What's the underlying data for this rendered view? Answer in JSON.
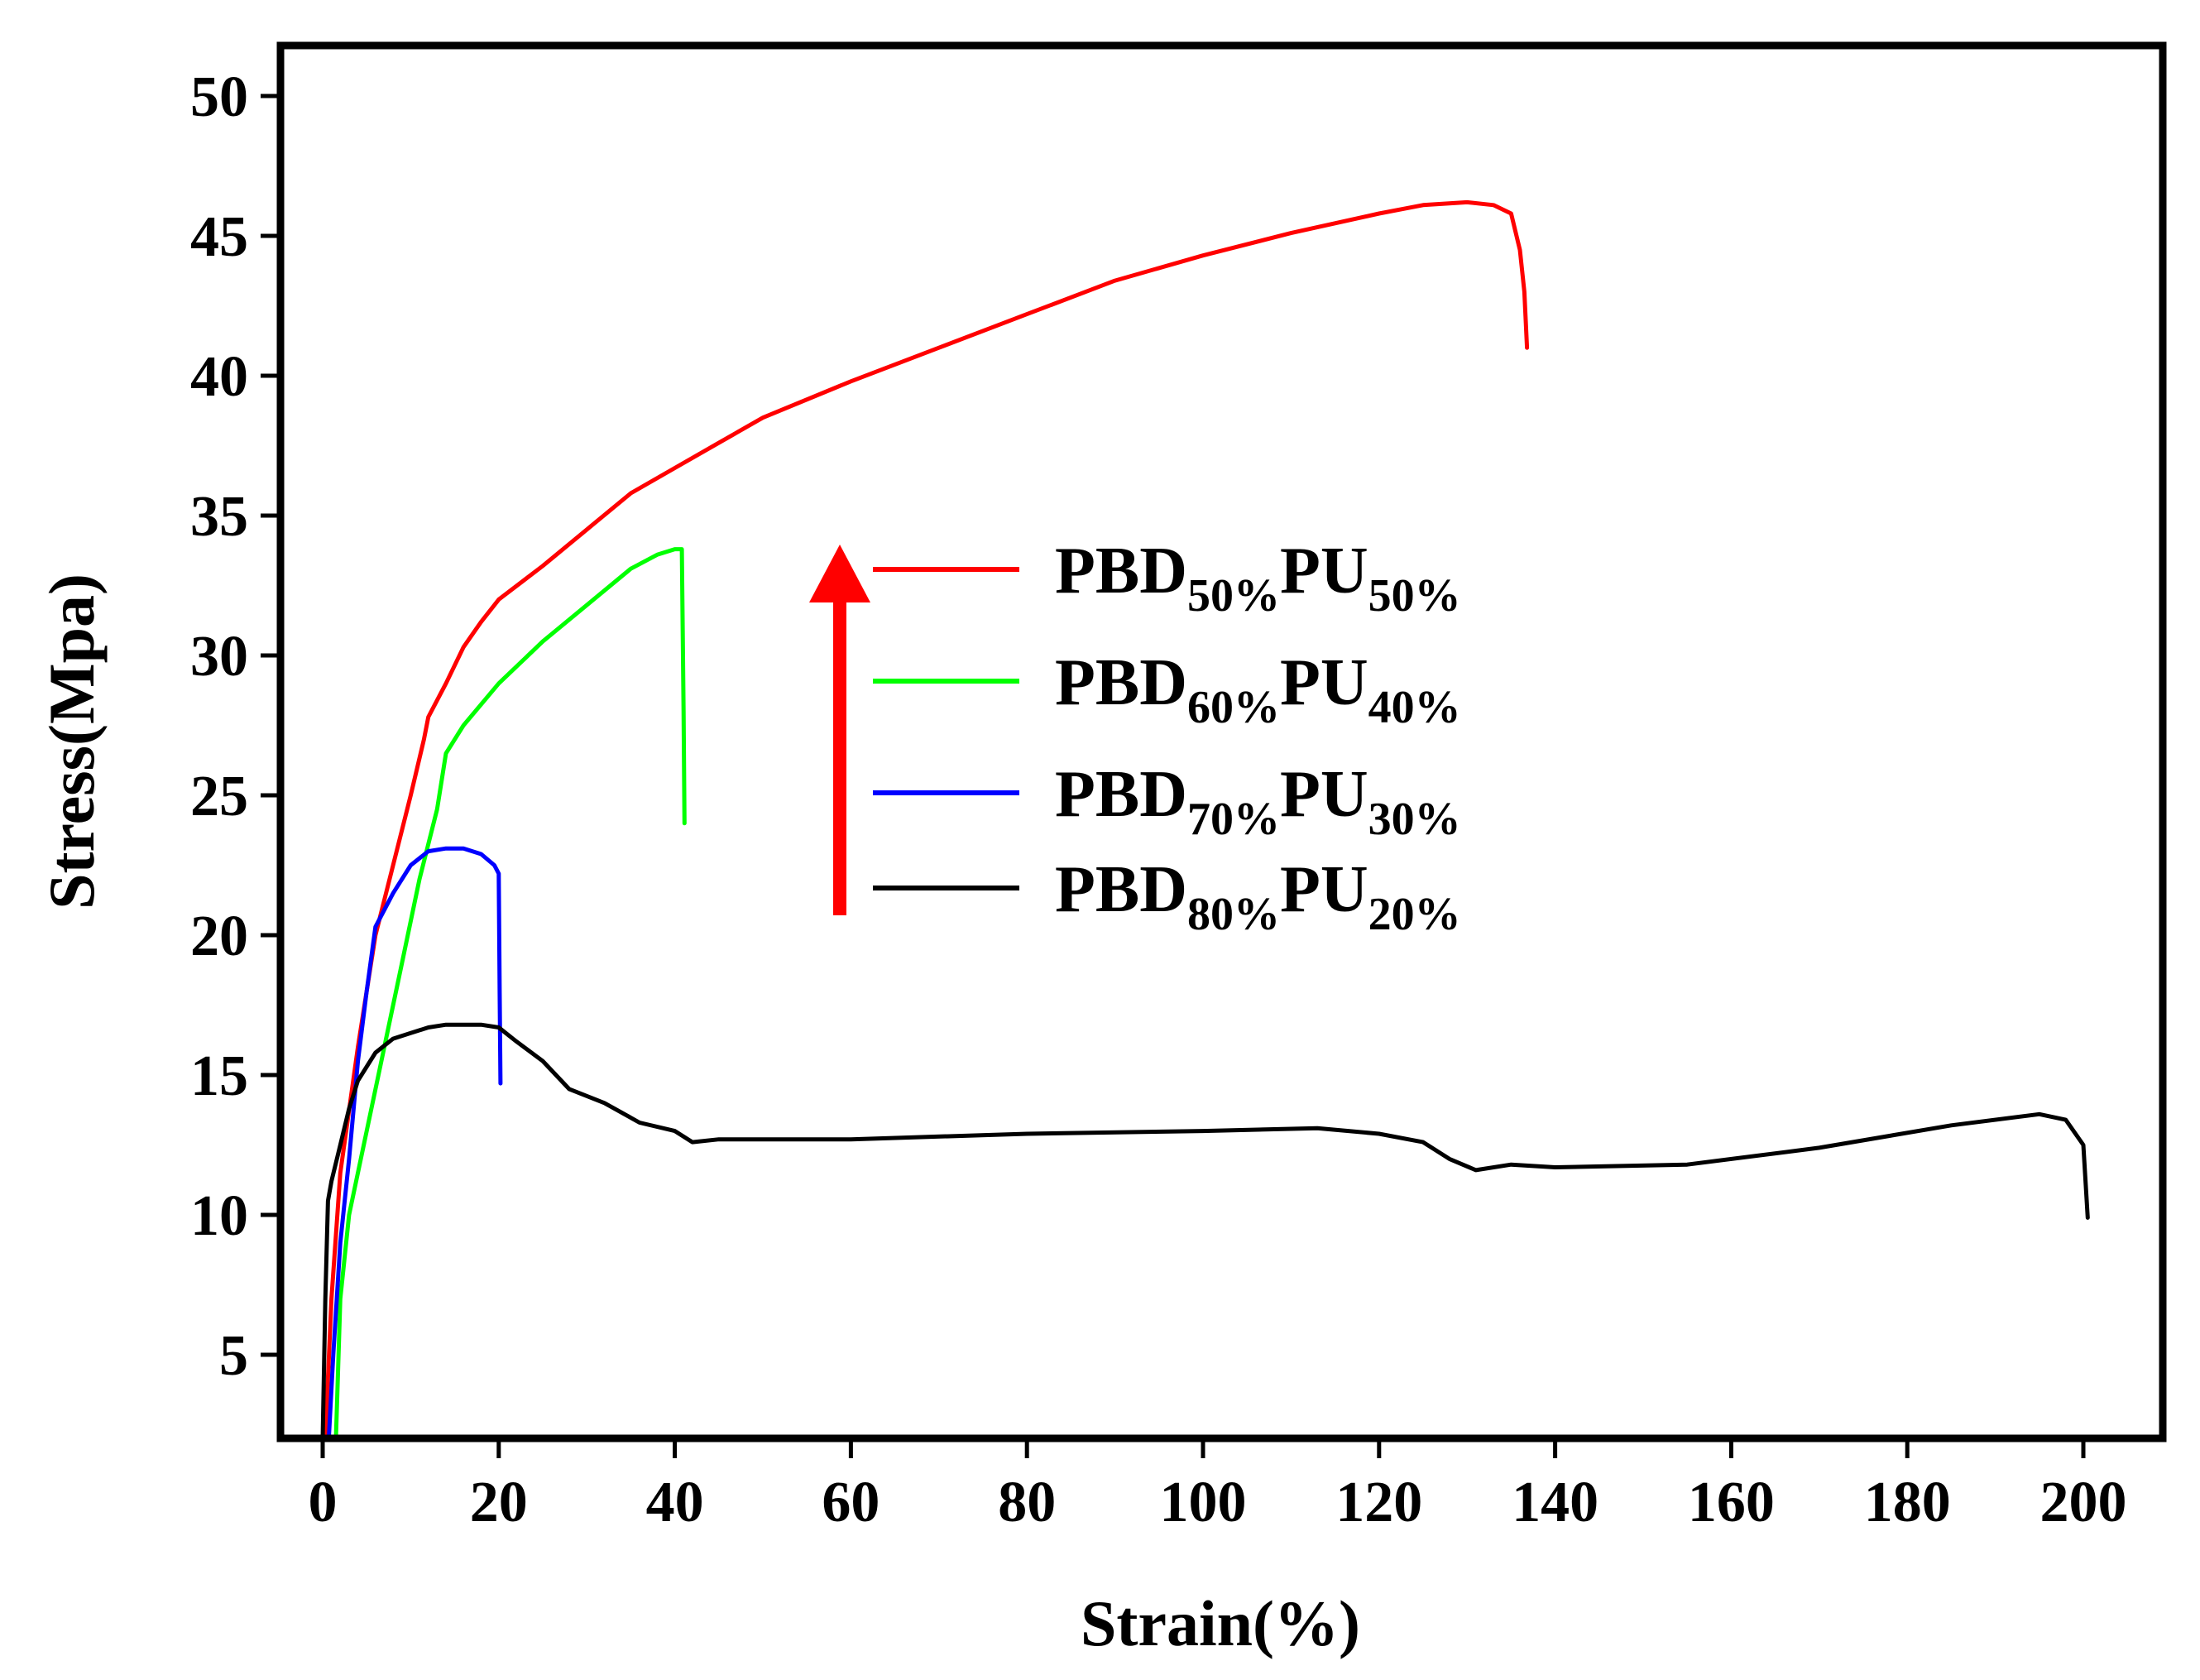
{
  "chart_data": {
    "type": "line",
    "title": "",
    "xlabel": "Strain(%)",
    "ylabel": "Stress(Mpa)",
    "xlim": [
      -5,
      210
    ],
    "ylim": [
      2,
      52
    ],
    "xticks": [
      0,
      20,
      40,
      60,
      80,
      100,
      120,
      140,
      160,
      180,
      200
    ],
    "yticks": [
      5,
      10,
      15,
      20,
      25,
      30,
      35,
      40,
      45,
      50
    ],
    "grid": false,
    "legend_position": "center",
    "series": [
      {
        "name": "PBD50%PU50%",
        "legend_main1": "PBD",
        "legend_sub1": "50%",
        "legend_main2": "PU",
        "legend_sub2": "50%",
        "color": "#ff0000",
        "x": [
          0.3,
          1,
          2,
          4,
          6,
          8,
          10,
          11.5,
          12,
          14,
          16,
          18,
          20,
          25,
          30,
          35,
          40,
          45,
          50,
          60,
          70,
          80,
          90,
          100,
          110,
          120,
          125,
          130,
          133,
          135,
          136,
          136.5,
          136.8
        ],
        "y": [
          2,
          7,
          11.5,
          16,
          20,
          22.5,
          25,
          27,
          27.8,
          29,
          30.3,
          31.2,
          32.0,
          33.2,
          34.5,
          35.8,
          36.7,
          37.6,
          38.5,
          39.8,
          41.0,
          42.2,
          43.4,
          44.3,
          45.1,
          45.8,
          46.1,
          46.2,
          46.1,
          45.8,
          44.5,
          43,
          41
        ]
      },
      {
        "name": "PBD60%PU40%",
        "legend_main1": "PBD",
        "legend_sub1": "60%",
        "legend_main2": "PU",
        "legend_sub2": "40%",
        "color": "#00ff00",
        "x": [
          1.5,
          2,
          3,
          5,
          7,
          9,
          11,
          13,
          14,
          16,
          20,
          25,
          30,
          35,
          38,
          40,
          40.8,
          41,
          41.1
        ],
        "y": [
          2,
          7,
          10,
          13,
          16,
          19,
          22,
          24.5,
          26.5,
          27.5,
          29,
          30.5,
          31.8,
          33.1,
          33.6,
          33.8,
          33.8,
          28,
          24
        ]
      },
      {
        "name": "PBD70%PU30%",
        "legend_main1": "PBD",
        "legend_sub1": "70%",
        "legend_main2": "PU",
        "legend_sub2": "30%",
        "color": "#0000ff",
        "x": [
          0.7,
          1.2,
          2,
          3,
          4,
          5,
          6,
          8,
          10,
          12,
          14,
          16,
          18,
          19.5,
          20,
          20.1,
          20.2
        ],
        "y": [
          2,
          5,
          9,
          12,
          15.5,
          18,
          20.3,
          21.5,
          22.5,
          23,
          23.1,
          23.1,
          22.9,
          22.5,
          22.2,
          18,
          14.7
        ]
      },
      {
        "name": "PBD80%PU20%",
        "legend_main1": "PBD",
        "legend_sub1": "80%",
        "legend_main2": "PU",
        "legend_sub2": "20%",
        "color": "#000000",
        "x": [
          0,
          0.3,
          0.6,
          1,
          2,
          3,
          4,
          6,
          8,
          10,
          12,
          14,
          16,
          18,
          20,
          22,
          25,
          28,
          32,
          36,
          40,
          42,
          45,
          60,
          80,
          100,
          113,
          120,
          125,
          128,
          131,
          135,
          140,
          155,
          170,
          185,
          195,
          198,
          200,
          200.5
        ],
        "y": [
          2,
          7,
          10.5,
          11.2,
          12.5,
          13.8,
          14.8,
          15.8,
          16.3,
          16.5,
          16.7,
          16.8,
          16.8,
          16.8,
          16.7,
          16.2,
          15.5,
          14.5,
          14.0,
          13.3,
          13.0,
          12.6,
          12.7,
          12.7,
          12.9,
          13.0,
          13.1,
          12.9,
          12.6,
          12.0,
          11.6,
          11.8,
          11.7,
          11.8,
          12.4,
          13.2,
          13.6,
          13.4,
          12.5,
          9.9
        ]
      }
    ],
    "annotations": [
      {
        "type": "arrow",
        "direction": "up",
        "color": "#ff0000",
        "label": ""
      }
    ]
  }
}
